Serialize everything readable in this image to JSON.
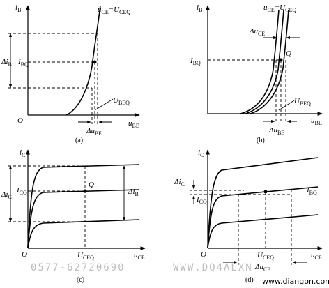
{
  "panels": [
    {
      "caption": "(a)",
      "y_axis": "i",
      "y_sub": "B",
      "x_axis": "u",
      "x_sub": "BE",
      "origin": "O",
      "curve_label": "u",
      "curve_label_sub": "CE",
      "curve_label_eq": "=U",
      "curve_label_eq_sub": "CEQ",
      "delta_y": "Δi",
      "delta_y_sub": "B",
      "level_label": "I",
      "level_label_sub": "BQ",
      "ubeq": "U",
      "ubeq_sub": "BEQ",
      "delta_x": "Δu",
      "delta_x_sub": "BE"
    },
    {
      "caption": "(b)",
      "y_axis": "i",
      "y_sub": "B",
      "x_axis": "u",
      "x_sub": "BE",
      "curve_label": "u",
      "curve_label_sub": "CE",
      "curve_label_eq": "=U",
      "curve_label_eq_sub": "CEQ",
      "delta_ce": "Δu",
      "delta_ce_sub": "CE",
      "level_label": "I",
      "level_label_sub": "BQ",
      "q": "Q",
      "ubeq": "U",
      "ubeq_sub": "BEQ",
      "delta_x": "Δu",
      "delta_x_sub": "BE"
    },
    {
      "caption": "(c)",
      "y_axis": "i",
      "y_sub": "C",
      "x_axis": "u",
      "x_sub": "CE",
      "origin": "O",
      "delta_y": "Δi",
      "delta_y_sub": "C",
      "level_label": "I",
      "level_label_sub": "CQ",
      "q": "Q",
      "delta_b": "Δi",
      "delta_b_sub": "B",
      "uceq": "U",
      "uceq_sub": "CEQ"
    },
    {
      "caption": "(d)",
      "y_axis": "i",
      "y_sub": "C",
      "x_axis": "u",
      "x_sub": "CE",
      "origin": "O",
      "delta_y": "Δi",
      "delta_y_sub": "C",
      "level_label": "I",
      "level_label_sub": "CQ",
      "ibq": "I",
      "ibq_sub": "BQ",
      "uceq": "U",
      "uceq_sub": "CEQ",
      "delta_x": "Δu",
      "delta_x_sub": "CE"
    }
  ],
  "watermark": {
    "phone": "0577-62720690",
    "site": "WWW.DQ4ALXN",
    "url": "www.diangon.com"
  }
}
